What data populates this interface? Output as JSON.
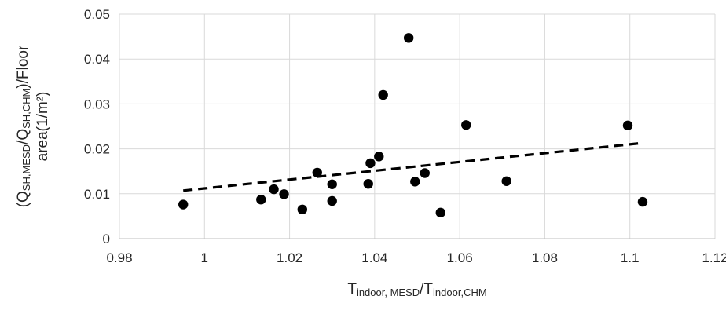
{
  "chart_data": {
    "type": "scatter",
    "title": "",
    "xlabel": {
      "parts": [
        {
          "text": "T",
          "sub": false
        },
        {
          "text": "indoor, MESD",
          "sub": true
        },
        {
          "text": "/T",
          "sub": false
        },
        {
          "text": "indoor,CHM",
          "sub": true
        }
      ]
    },
    "ylabel": {
      "line1": [
        {
          "text": "(Q",
          "sub": false
        },
        {
          "text": "SH,MESD",
          "sub": true
        },
        {
          "text": "/Q",
          "sub": false
        },
        {
          "text": "SH,CHM",
          "sub": true
        },
        {
          "text": ")/Floor",
          "sub": false
        }
      ],
      "line2": [
        {
          "text": "area(1/m²)",
          "sub": false
        }
      ]
    },
    "xlim": [
      0.98,
      1.12
    ],
    "ylim": [
      0,
      0.05
    ],
    "x_ticks": [
      "0.98",
      "1",
      "1.02",
      "1.04",
      "1.06",
      "1.08",
      "1.1",
      "1.12"
    ],
    "y_ticks": [
      "0",
      "0.01",
      "0.02",
      "0.03",
      "0.04",
      "0.05"
    ],
    "grid": true,
    "legend": "none",
    "points": [
      {
        "x": 0.995,
        "y": 0.0076
      },
      {
        "x": 1.0133,
        "y": 0.0087
      },
      {
        "x": 1.0163,
        "y": 0.011
      },
      {
        "x": 1.0187,
        "y": 0.0099
      },
      {
        "x": 1.023,
        "y": 0.0065
      },
      {
        "x": 1.0265,
        "y": 0.0147
      },
      {
        "x": 1.03,
        "y": 0.0121
      },
      {
        "x": 1.03,
        "y": 0.0084
      },
      {
        "x": 1.0385,
        "y": 0.0122
      },
      {
        "x": 1.039,
        "y": 0.0168
      },
      {
        "x": 1.041,
        "y": 0.0183
      },
      {
        "x": 1.042,
        "y": 0.032
      },
      {
        "x": 1.048,
        "y": 0.0447
      },
      {
        "x": 1.0495,
        "y": 0.0127
      },
      {
        "x": 1.0518,
        "y": 0.0146
      },
      {
        "x": 1.0555,
        "y": 0.0058
      },
      {
        "x": 1.0615,
        "y": 0.0253
      },
      {
        "x": 1.071,
        "y": 0.0128
      },
      {
        "x": 1.0995,
        "y": 0.0252
      },
      {
        "x": 1.103,
        "y": 0.0082
      }
    ],
    "trendline": {
      "style": "dashed",
      "x": [
        0.995,
        1.103
      ],
      "y": [
        0.0107,
        0.0213
      ]
    },
    "colors": {
      "points": "#000000",
      "trendline": "#000000",
      "grid": "#d9d9d9",
      "text": "#262626"
    }
  }
}
